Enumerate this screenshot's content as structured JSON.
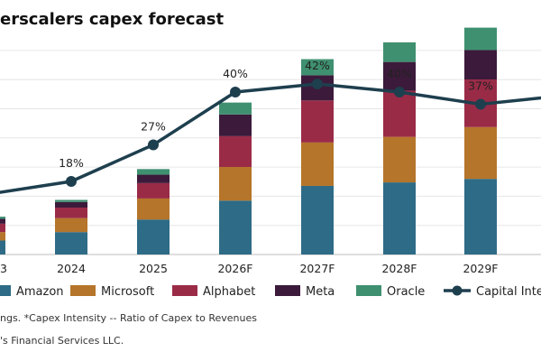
{
  "chart_data": {
    "type": "bar",
    "title": "erscalers capex forecast",
    "categories": [
      "3",
      "2024",
      "2025",
      "2026F",
      "2027F",
      "2028F",
      "2029F"
    ],
    "stacked": true,
    "series": [
      {
        "name": "Amazon",
        "color": "#2e6b86",
        "values": [
          20,
          32,
          50,
          77,
          98,
          103,
          108
        ]
      },
      {
        "name": "Microsoft",
        "color": "#b5752a",
        "values": [
          12,
          20,
          30,
          48,
          62,
          65,
          74
        ]
      },
      {
        "name": "Alphabet",
        "color": "#9a2b47",
        "values": [
          12,
          15,
          22,
          44,
          60,
          66,
          68
        ]
      },
      {
        "name": "Meta",
        "color": "#3c1a3b",
        "values": [
          7,
          8,
          12,
          31,
          36,
          41,
          42
        ]
      },
      {
        "name": "Oracle",
        "color": "#3f9070",
        "values": [
          3,
          3,
          8,
          17,
          23,
          28,
          32
        ]
      }
    ],
    "line_series": {
      "name": "Capital Inte",
      "color": "#1e3f4e",
      "x": [
        "",
        "2024",
        "2025",
        "2026F",
        "2027F",
        "2028F",
        "2029F",
        ""
      ],
      "values": [
        null,
        18,
        27,
        40,
        42,
        40,
        37,
        null
      ],
      "labels": [
        "",
        "18%",
        "27%",
        "40%",
        "42%",
        "40%",
        "37%",
        ""
      ]
    },
    "grid": true,
    "legend_position": "bottom",
    "footnote_1": "ngs. *Capex Intensity -- Ratio of  Capex  to Revenues",
    "footnote_2": "'s Financial Services LLC."
  }
}
